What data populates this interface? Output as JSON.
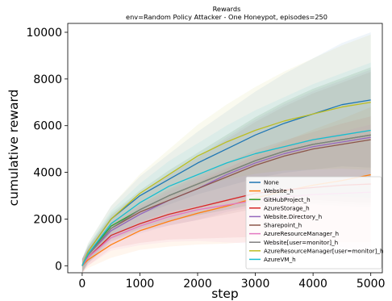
{
  "chart_data": {
    "type": "line",
    "title": "Rewards",
    "subtitle": "env=Random Policy Attacker - One Honeypot, episodes=250",
    "xlabel": "step",
    "ylabel": "cumulative reward",
    "xlim": [
      -250,
      5200
    ],
    "ylim": [
      -300,
      10380
    ],
    "xticks": [
      "0",
      "1000",
      "2000",
      "3000",
      "4000",
      "5000"
    ],
    "xtick_values": [
      0,
      1000,
      2000,
      3000,
      4000,
      5000
    ],
    "yticks": [
      "0",
      "2000",
      "4000",
      "6000",
      "8000",
      "10000"
    ],
    "ytick_values": [
      0,
      2000,
      4000,
      6000,
      8000,
      10000
    ],
    "grid": false,
    "legend_position": "lower-right",
    "shaded_bands": true,
    "series": [
      {
        "name": "None",
        "color": "#1f77b4",
        "x": [
          0,
          100,
          500,
          1000,
          1500,
          2000,
          2500,
          3000,
          3500,
          4000,
          4500,
          5000
        ],
        "y": [
          0,
          600,
          2000,
          3000,
          3700,
          4400,
          5000,
          5600,
          6100,
          6500,
          6900,
          7100
        ]
      },
      {
        "name": "Website_h",
        "color": "#ff7f0e",
        "x": [
          0,
          100,
          500,
          1000,
          1500,
          2000,
          2500,
          3000,
          3500,
          4000,
          4500,
          5000
        ],
        "y": [
          0,
          250,
          900,
          1500,
          1900,
          2250,
          2550,
          2900,
          3200,
          3450,
          3650,
          3900
        ]
      },
      {
        "name": "GitHubProject_h",
        "color": "#2ca02c",
        "x": [
          0,
          100,
          500,
          1000,
          1500,
          2000,
          2500,
          3000,
          3500,
          4000,
          4500,
          5000
        ],
        "y": [
          0,
          500,
          1700,
          2400,
          3000,
          3500,
          4000,
          4500,
          4900,
          5200,
          5400,
          5600
        ]
      },
      {
        "name": "AzureStorage_h",
        "color": "#d62728",
        "x": [
          0,
          100,
          500,
          1000,
          1500,
          2000,
          2500,
          3000,
          3500,
          4000,
          4500,
          5000
        ],
        "y": [
          0,
          350,
          1300,
          1800,
          2200,
          2500,
          2800,
          3100,
          3250,
          3350,
          3450,
          3500
        ]
      },
      {
        "name": "Website.Directory_h",
        "color": "#9467bd",
        "x": [
          0,
          100,
          500,
          1000,
          1500,
          2000,
          2500,
          3000,
          3500,
          4000,
          4500,
          5000
        ],
        "y": [
          0,
          450,
          1500,
          2200,
          2800,
          3300,
          3900,
          4400,
          4800,
          5100,
          5300,
          5500
        ]
      },
      {
        "name": "Sharepoint_h",
        "color": "#8c564b",
        "x": [
          0,
          100,
          500,
          1000,
          1500,
          2000,
          2500,
          3000,
          3500,
          4000,
          4500,
          5000
        ],
        "y": [
          0,
          450,
          1600,
          2300,
          2800,
          3300,
          3800,
          4300,
          4700,
          5000,
          5200,
          5400
        ]
      },
      {
        "name": "AzureResourceManager_h",
        "color": "#e377c2",
        "x": [
          0,
          100,
          500,
          1000,
          1500,
          2000,
          2500,
          3000,
          3500,
          4000,
          4500,
          5000
        ],
        "y": [
          0,
          350,
          1200,
          1700,
          2100,
          2400,
          2600,
          2800,
          2950,
          3050,
          3100,
          3150
        ]
      },
      {
        "name": "Website[user=monitor]_h",
        "color": "#7f7f7f",
        "x": [
          0,
          100,
          500,
          1000,
          1500,
          2000,
          2500,
          3000,
          3500,
          4000,
          4500,
          5000
        ],
        "y": [
          0,
          450,
          1600,
          2400,
          3000,
          3500,
          4000,
          4500,
          4900,
          5200,
          5400,
          5600
        ]
      },
      {
        "name": "AzureResourceManager[user=monitor]_h",
        "color": "#bcbd22",
        "x": [
          0,
          100,
          500,
          1000,
          1500,
          2000,
          2500,
          3000,
          3500,
          4000,
          4500,
          5000
        ],
        "y": [
          0,
          600,
          2000,
          3100,
          3900,
          4700,
          5300,
          5800,
          6200,
          6500,
          6800,
          7000
        ]
      },
      {
        "name": "AzureVM_h",
        "color": "#17becf",
        "x": [
          0,
          100,
          500,
          1000,
          1500,
          2000,
          2500,
          3000,
          3500,
          4000,
          4500,
          5000
        ],
        "y": [
          0,
          500,
          1800,
          2700,
          3400,
          3900,
          4400,
          4800,
          5100,
          5400,
          5600,
          5800
        ]
      }
    ]
  }
}
